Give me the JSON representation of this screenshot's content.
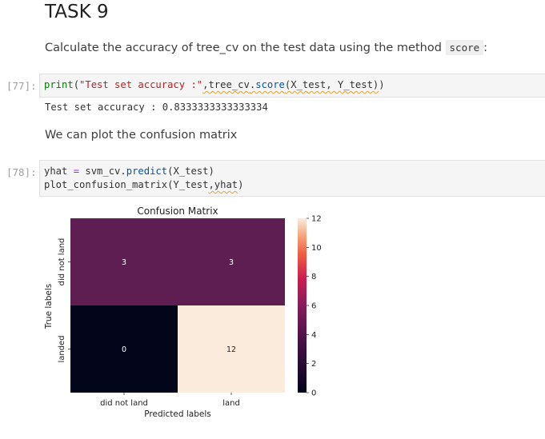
{
  "task": {
    "title": "TASK 9",
    "instruction_prefix": "Calculate the accuracy of tree_cv on the test data using the method",
    "instruction_code": "score",
    "instruction_suffix": ":"
  },
  "cell77": {
    "prompt": "[77]:",
    "tok_print": "print",
    "tok_open": "(",
    "tok_string": "\"Test set accuracy :\"",
    "tok_comma1": ",",
    "tok_obj": "tree_cv",
    "tok_dot": ".",
    "tok_method": "score",
    "tok_args": "(X_test, Y_test)",
    "tok_close": ")",
    "output": "Test set accuracy : 0.8333333333333334"
  },
  "plot_text": "We can plot the confusion matrix",
  "cell78": {
    "prompt": "[78]:",
    "line1_a": "yhat ",
    "line1_eq": "=",
    "line1_b": " svm_cv.",
    "line1_method": "predict",
    "line1_c": "(X_test)",
    "line2_a": "plot_confusion_matrix(Y_test",
    "line2_b": ",yhat",
    "line2_c": ")"
  },
  "chart_data": {
    "type": "heatmap",
    "title": "Confusion Matrix",
    "xlabel": "Predicted labels",
    "ylabel": "True labels",
    "x_categories": [
      "did not land",
      "land"
    ],
    "y_categories": [
      "did not land",
      "landed"
    ],
    "values": [
      [
        3,
        3
      ],
      [
        0,
        12
      ]
    ],
    "colorbar": {
      "min": 0,
      "max": 12,
      "ticks": [
        "0",
        "2",
        "4",
        "6",
        "8",
        "10",
        "12"
      ]
    },
    "colors": {
      "low": "#03051a",
      "mid": "#5f1e52",
      "high": "#faebdd"
    }
  }
}
